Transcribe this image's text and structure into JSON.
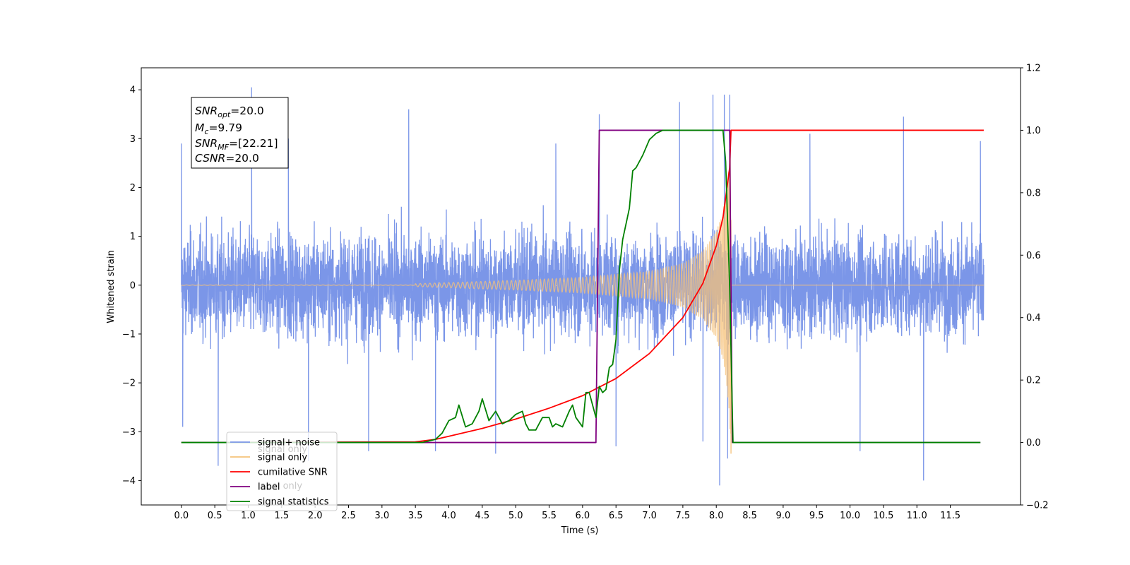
{
  "chart_data": {
    "type": "line",
    "xlabel": "Time (s)",
    "ylabel": "Whitened strain",
    "xlim": [
      -0.6,
      12.55
    ],
    "ylim": [
      -4.5,
      4.45
    ],
    "ylim_right": [
      -0.2,
      1.2
    ],
    "grid": false,
    "legend_placement": "lower-left",
    "x_ticks": [
      "0.0",
      "0.5",
      "1.0",
      "1.5",
      "2.0",
      "2.5",
      "3.0",
      "3.5",
      "4.0",
      "4.5",
      "5.0",
      "5.5",
      "6.0",
      "6.5",
      "7.0",
      "7.5",
      "8.0",
      "8.5",
      "9.0",
      "9.5",
      "10.0",
      "10.5",
      "11.0",
      "11.5"
    ],
    "y_ticks": [
      "4",
      "3",
      "2",
      "1",
      "0",
      "−1",
      "−2",
      "−3",
      "−4"
    ],
    "y_ticks_right": [
      "1.2",
      "1.0",
      "0.8",
      "0.6",
      "0.4",
      "0.2",
      "0.0",
      "−0.2"
    ],
    "annotation": {
      "snr_opt_main": "SNR",
      "snr_opt_sub": "opt",
      "snr_opt_val": "=20.0",
      "mc_main": "M",
      "mc_sub": "c",
      "mc_val": "=9.79",
      "snr_mf_main": "SNR",
      "snr_mf_sub": "MF",
      "snr_mf_val": "=[22.21]",
      "csnr_main": "CSNR",
      "csnr_val": "=20.0"
    },
    "series": [
      {
        "name": "signal+ noise",
        "axis": "left",
        "color": "#7b96e8",
        "description_points": "noise_band",
        "t_start": 0.0,
        "t_end": 12.0,
        "noise_core_range": [
          -1.9,
          1.9
        ],
        "noise_peak_values": [
          [
            0.0,
            2.9
          ],
          [
            0.02,
            -2.9
          ],
          [
            0.55,
            -3.7
          ],
          [
            1.05,
            4.05
          ],
          [
            1.6,
            3.0
          ],
          [
            1.9,
            -3.6
          ],
          [
            2.8,
            -3.4
          ],
          [
            3.4,
            3.6
          ],
          [
            3.8,
            -3.4
          ],
          [
            4.7,
            -3.45
          ],
          [
            5.6,
            2.9
          ],
          [
            6.25,
            3.5
          ],
          [
            6.5,
            -3.3
          ],
          [
            7.45,
            3.75
          ],
          [
            7.8,
            -3.2
          ],
          [
            7.95,
            3.9
          ],
          [
            8.05,
            -4.1
          ],
          [
            8.12,
            3.9
          ],
          [
            8.17,
            -3.55
          ],
          [
            8.2,
            3.9
          ],
          [
            9.4,
            3.1
          ],
          [
            10.15,
            -3.4
          ],
          [
            10.8,
            3.45
          ],
          [
            11.1,
            -4.0
          ],
          [
            11.95,
            2.95
          ]
        ]
      },
      {
        "name": "signal only",
        "axis": "left",
        "color": "#f5c27a",
        "description_points": "chirp",
        "t_start": 0.0,
        "t_end": 12.0,
        "chirp_merger_time": 8.24,
        "chirp_envelope": [
          [
            3.5,
            0.03
          ],
          [
            5.0,
            0.1
          ],
          [
            6.0,
            0.16
          ],
          [
            7.0,
            0.28
          ],
          [
            7.5,
            0.45
          ],
          [
            7.8,
            0.7
          ],
          [
            8.0,
            1.1
          ],
          [
            8.1,
            1.5
          ],
          [
            8.17,
            2.2
          ],
          [
            8.22,
            3.45
          ]
        ]
      },
      {
        "name": "cumilative SNR",
        "axis": "right",
        "color": "#ff0000",
        "points": [
          [
            0,
            0.0
          ],
          [
            3.5,
            0.002
          ],
          [
            3.8,
            0.01
          ],
          [
            4.0,
            0.02
          ],
          [
            4.5,
            0.045
          ],
          [
            5.0,
            0.075
          ],
          [
            5.5,
            0.11
          ],
          [
            6.0,
            0.15
          ],
          [
            6.5,
            0.205
          ],
          [
            7.0,
            0.285
          ],
          [
            7.5,
            0.4
          ],
          [
            7.8,
            0.51
          ],
          [
            8.0,
            0.63
          ],
          [
            8.1,
            0.72
          ],
          [
            8.2,
            0.88
          ],
          [
            8.22,
            1.0
          ],
          [
            12.0,
            1.0
          ]
        ]
      },
      {
        "name": "label",
        "axis": "right",
        "color": "#800080",
        "points": [
          [
            0,
            0.0
          ],
          [
            6.2,
            0.0
          ],
          [
            6.25,
            1.0
          ],
          [
            8.2,
            1.0
          ],
          [
            8.24,
            0.0
          ],
          [
            11.95,
            0.0
          ]
        ]
      },
      {
        "name": "signal statistics",
        "axis": "right",
        "color": "#008000",
        "points": [
          [
            0,
            0.0
          ],
          [
            3.6,
            0.0
          ],
          [
            3.8,
            0.01
          ],
          [
            3.9,
            0.03
          ],
          [
            4.0,
            0.07
          ],
          [
            4.1,
            0.08
          ],
          [
            4.15,
            0.12
          ],
          [
            4.25,
            0.05
          ],
          [
            4.35,
            0.06
          ],
          [
            4.45,
            0.1
          ],
          [
            4.5,
            0.14
          ],
          [
            4.6,
            0.07
          ],
          [
            4.7,
            0.1
          ],
          [
            4.8,
            0.06
          ],
          [
            4.9,
            0.07
          ],
          [
            5.0,
            0.09
          ],
          [
            5.1,
            0.1
          ],
          [
            5.15,
            0.06
          ],
          [
            5.2,
            0.04
          ],
          [
            5.3,
            0.04
          ],
          [
            5.4,
            0.08
          ],
          [
            5.5,
            0.08
          ],
          [
            5.55,
            0.05
          ],
          [
            5.6,
            0.06
          ],
          [
            5.7,
            0.05
          ],
          [
            5.8,
            0.1
          ],
          [
            5.85,
            0.12
          ],
          [
            5.9,
            0.08
          ],
          [
            6.0,
            0.05
          ],
          [
            6.05,
            0.16
          ],
          [
            6.1,
            0.16
          ],
          [
            6.2,
            0.08
          ],
          [
            6.25,
            0.18
          ],
          [
            6.3,
            0.16
          ],
          [
            6.35,
            0.17
          ],
          [
            6.4,
            0.24
          ],
          [
            6.45,
            0.25
          ],
          [
            6.5,
            0.33
          ],
          [
            6.55,
            0.55
          ],
          [
            6.6,
            0.65
          ],
          [
            6.7,
            0.75
          ],
          [
            6.75,
            0.87
          ],
          [
            6.8,
            0.88
          ],
          [
            6.9,
            0.92
          ],
          [
            7.0,
            0.97
          ],
          [
            7.1,
            0.99
          ],
          [
            7.2,
            1.0
          ],
          [
            8.1,
            1.0
          ],
          [
            8.14,
            0.9
          ],
          [
            8.2,
            0.5
          ],
          [
            8.25,
            0.0
          ],
          [
            11.95,
            0.0
          ]
        ]
      }
    ],
    "legend": [
      {
        "label": "signal+ noise",
        "color": "#7b96e8"
      },
      {
        "label": "signal only",
        "color": "#f5c27a"
      },
      {
        "label": "cumilative SNR",
        "color": "#ff0000"
      },
      {
        "label": "label",
        "color": "#800080"
      },
      {
        "label": "signal statistics",
        "color": "#008000"
      }
    ],
    "legend_background_text": [
      {
        "text": "signal only"
      },
      {
        "text": "label only"
      }
    ]
  }
}
